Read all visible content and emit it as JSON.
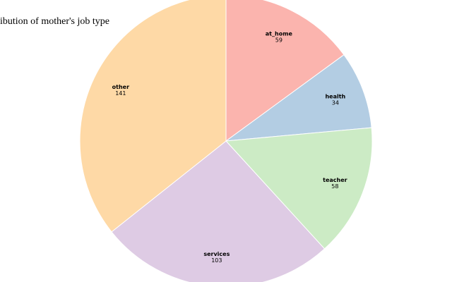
{
  "chart_data": {
    "type": "pie",
    "title": "Distribution of mother's job type",
    "categories": [
      "at_home",
      "health",
      "teacher",
      "services",
      "other"
    ],
    "values": [
      59,
      34,
      58,
      103,
      141
    ],
    "colors": [
      "#fbb4ae",
      "#b3cde3",
      "#ccebc5",
      "#decbe4",
      "#fed9a6"
    ]
  }
}
